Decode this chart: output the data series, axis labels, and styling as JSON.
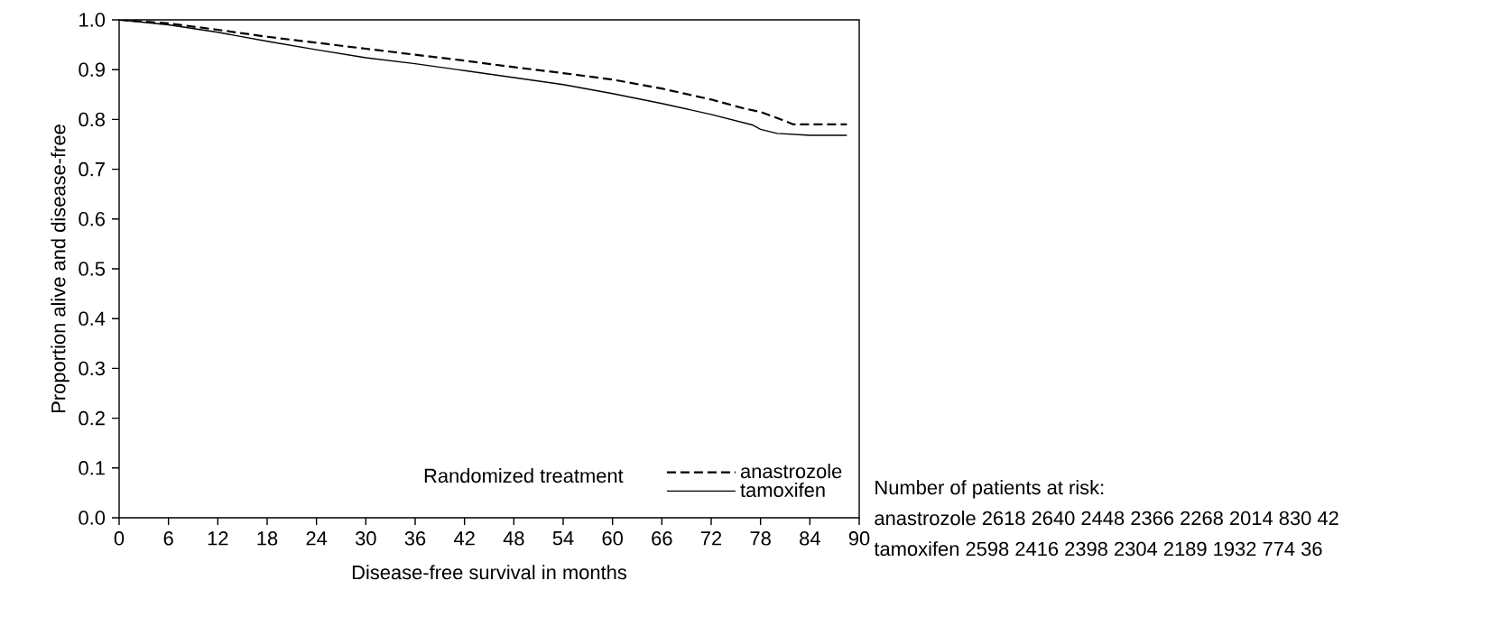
{
  "chart_data": {
    "type": "line",
    "xlabel": "Disease-free survival in months",
    "ylabel": "Proportion alive and disease-free",
    "legend_title": "Randomized treatment",
    "series": [
      {
        "name": "anastrozole",
        "color": "#000000",
        "line_style": "dashed",
        "x": [
          0,
          6,
          12,
          18,
          24,
          30,
          36,
          42,
          48,
          54,
          60,
          66,
          72,
          76,
          78,
          80,
          82,
          86,
          88.5
        ],
        "values": [
          1.0,
          0.993,
          0.98,
          0.966,
          0.954,
          0.942,
          0.93,
          0.918,
          0.905,
          0.893,
          0.88,
          0.862,
          0.84,
          0.822,
          0.815,
          0.803,
          0.79,
          0.79,
          0.79
        ]
      },
      {
        "name": "tamoxifen",
        "color": "#000000",
        "line_style": "solid",
        "x": [
          0,
          6,
          12,
          18,
          24,
          30,
          36,
          42,
          48,
          54,
          60,
          66,
          72,
          77,
          78,
          80,
          84,
          88.5
        ],
        "values": [
          1.0,
          0.99,
          0.975,
          0.957,
          0.94,
          0.924,
          0.912,
          0.898,
          0.884,
          0.87,
          0.852,
          0.832,
          0.81,
          0.789,
          0.78,
          0.772,
          0.768,
          0.768
        ]
      }
    ],
    "xlim": [
      0,
      90
    ],
    "xticks": [
      0,
      6,
      12,
      18,
      24,
      30,
      36,
      42,
      48,
      54,
      60,
      66,
      72,
      78,
      84,
      90
    ],
    "ylim": [
      0,
      1
    ],
    "yticks": [
      {
        "value": 0,
        "label": "0.0"
      },
      0.1,
      0.2,
      0.3,
      0.4,
      0.5,
      0.6,
      0.7,
      0.8,
      0.9,
      {
        "value": 1,
        "label": "1.0"
      }
    ],
    "legend": "bottom right",
    "marker": "none",
    "annotations": [
      "Number of patients at risk:",
      "anastrozole 2618 2640 2448 2366 2268 2014 830 42",
      "tamoxifen 2598 2416 2398 2304 2189 1932 774 36"
    ]
  }
}
